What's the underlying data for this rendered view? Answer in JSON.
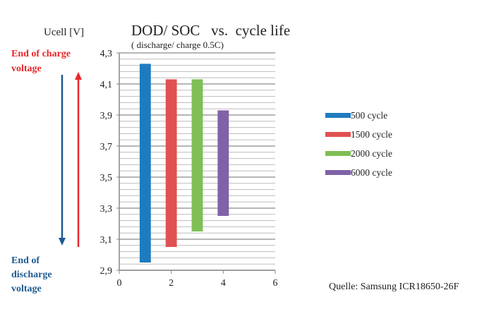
{
  "chart_data": {
    "type": "bar",
    "subtype": "floating-range",
    "title": "DOD/ SOC   vs.  cycle life",
    "subtitle": "( discharge/ charge 0.5C)",
    "ylabel": "Ucell  [V]",
    "xlabel": "",
    "xlim": [
      0,
      6
    ],
    "ylim": [
      2.9,
      4.3
    ],
    "xticks": [
      "0",
      "2",
      "4",
      "6"
    ],
    "yticks": [
      "2,9",
      "3,1",
      "3,3",
      "3,5",
      "3,7",
      "3,9",
      "4,1",
      "4,3"
    ],
    "grid": true,
    "legend_position": "right",
    "series": [
      {
        "name": "500 cycle",
        "x": 1,
        "low": 2.95,
        "high": 4.23,
        "color": "#1f7bbf"
      },
      {
        "name": "1500 cycle",
        "x": 2,
        "low": 3.05,
        "high": 4.13,
        "color": "#e05252"
      },
      {
        "name": "2000 cycle",
        "x": 3,
        "low": 3.15,
        "high": 4.13,
        "color": "#7fbf55"
      },
      {
        "name": "6000 cycle",
        "x": 4,
        "low": 3.25,
        "high": 3.93,
        "color": "#7f62a8"
      }
    ]
  },
  "annotations": {
    "charge_label": [
      "End of charge",
      "voltage"
    ],
    "charge_color": "#e8262a",
    "discharge_label": [
      "End of",
      "discharge",
      "voltage"
    ],
    "discharge_color": "#1d5a92",
    "source": "Quelle: Samsung ICR18650-26F"
  }
}
